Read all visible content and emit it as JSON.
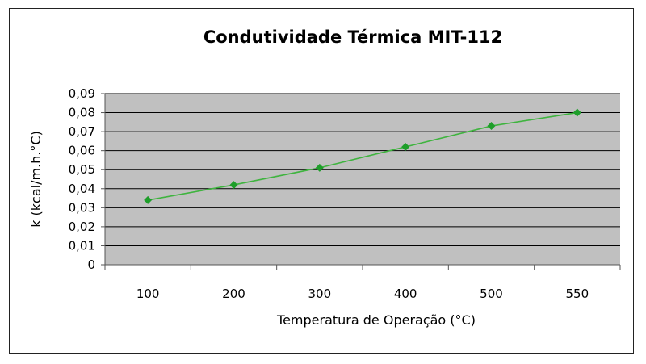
{
  "chart_data": {
    "type": "line",
    "title": "Condutividade Térmica MIT-112",
    "xlabel": "Temperatura de Operação (°C)",
    "ylabel": "k (kcal/m.h.°C)",
    "categories": [
      "100",
      "200",
      "300",
      "400",
      "500",
      "550"
    ],
    "series": [
      {
        "values": [
          0.034,
          0.042,
          0.051,
          0.062,
          0.073,
          0.08
        ]
      }
    ],
    "ylim": [
      0,
      0.09
    ],
    "yticks": [
      "0",
      "0,01",
      "0,02",
      "0,03",
      "0,04",
      "0,05",
      "0,06",
      "0,07",
      "0,08",
      "0,09"
    ],
    "grid": true,
    "legend": "none",
    "colors": {
      "plot_background": "#c0c0c0",
      "line": "#3fb43f",
      "marker": "#1e9e2a",
      "gridline": "#000000"
    }
  }
}
